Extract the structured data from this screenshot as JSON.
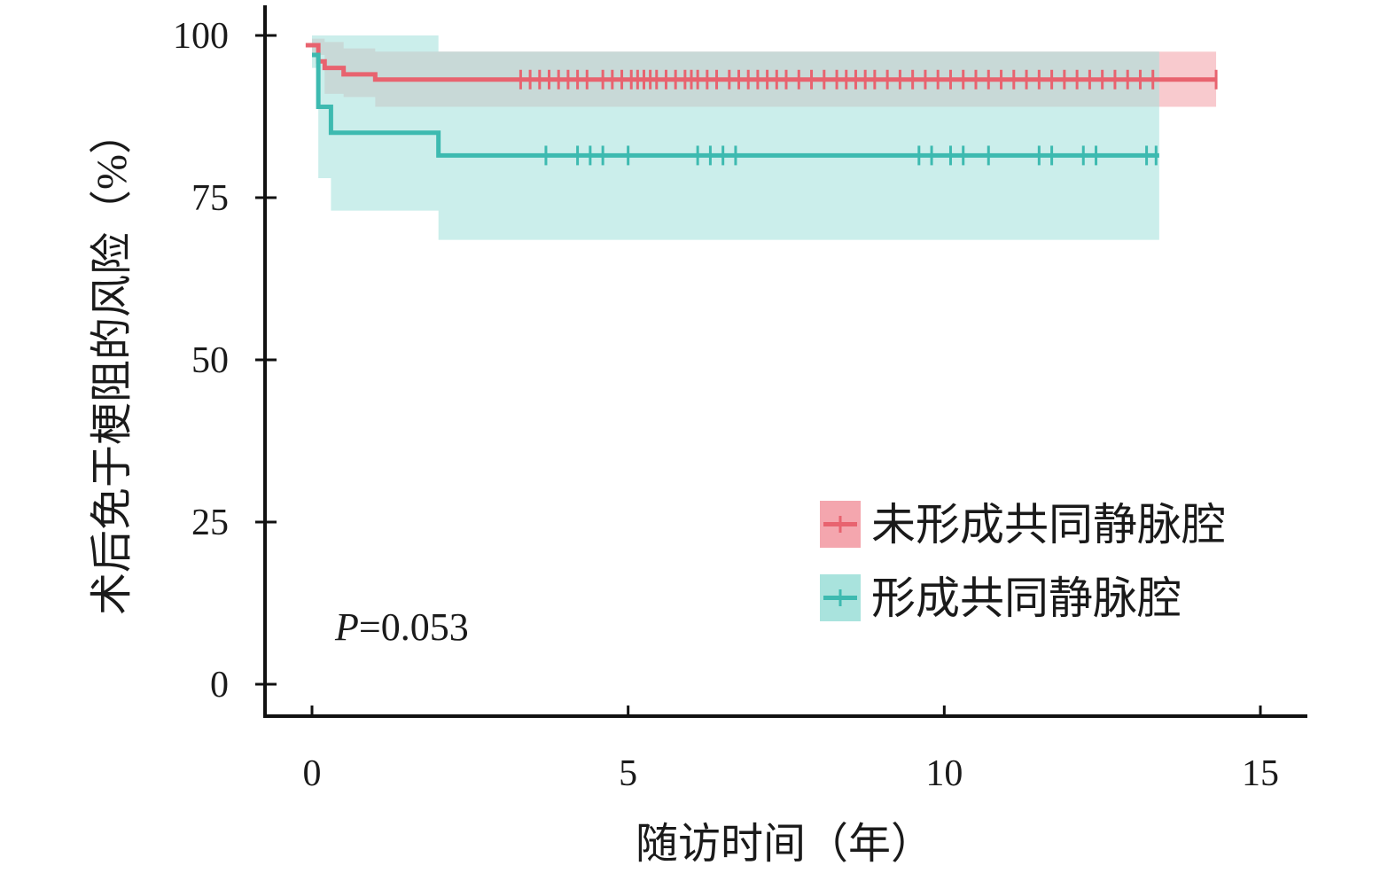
{
  "chart_data": {
    "type": "line",
    "xlabel": "随访时间（年）",
    "ylabel": "术后免于梗阻的风险（%）",
    "xlim": [
      0,
      15
    ],
    "ylim": [
      0,
      100
    ],
    "xticks": [
      "0",
      "5",
      "10",
      "15"
    ],
    "yticks": [
      "0",
      "25",
      "50",
      "75",
      "100"
    ],
    "grid": false,
    "legend_position": "bottom-right",
    "annotation": {
      "italic": "P",
      "rest": "=0.053"
    },
    "series": [
      {
        "name": "未形成共同静脉腔",
        "color": "#e8636f",
        "band_color": "#f4a6ae",
        "steps": [
          [
            -0.1,
            98.5
          ],
          [
            0.1,
            96
          ],
          [
            0.2,
            95
          ],
          [
            0.5,
            94
          ],
          [
            1.0,
            93.2
          ],
          [
            14.3,
            93.2
          ]
        ],
        "ci_steps": [
          [
            0.0,
            99.5,
            97
          ],
          [
            0.2,
            99,
            91
          ],
          [
            0.5,
            98,
            90.5
          ],
          [
            1.0,
            97.5,
            89
          ],
          [
            13.4,
            97.5,
            89
          ]
        ],
        "ci_end_band": [
          13.4,
          14.3,
          97.5,
          89
        ],
        "censored": [
          3.3,
          3.45,
          3.6,
          3.75,
          3.9,
          4.05,
          4.2,
          4.35,
          4.6,
          4.75,
          4.9,
          5.05,
          5.15,
          5.25,
          5.35,
          5.45,
          5.6,
          5.75,
          5.9,
          6.0,
          6.1,
          6.25,
          6.4,
          6.6,
          6.75,
          6.9,
          7.05,
          7.2,
          7.35,
          7.5,
          7.7,
          7.9,
          8.1,
          8.3,
          8.45,
          8.6,
          8.75,
          8.9,
          9.1,
          9.3,
          9.5,
          9.7,
          9.9,
          10.1,
          10.3,
          10.5,
          10.7,
          10.9,
          11.1,
          11.3,
          11.5,
          11.7,
          11.9,
          12.1,
          12.3,
          12.5,
          12.7,
          12.9,
          13.1,
          13.3,
          14.3
        ]
      },
      {
        "name": "形成共同静脉腔",
        "color": "#3dbab0",
        "band_color": "#a9e3dd",
        "steps": [
          [
            0.0,
            97
          ],
          [
            0.1,
            89
          ],
          [
            0.3,
            85
          ],
          [
            2.0,
            81.5
          ],
          [
            13.4,
            81.5
          ]
        ],
        "ci_steps": [
          [
            0.0,
            100,
            95
          ],
          [
            0.1,
            100,
            78
          ],
          [
            0.3,
            100,
            73
          ],
          [
            2.0,
            97.5,
            68.5
          ],
          [
            13.4,
            97.5,
            68.5
          ]
        ],
        "censored": [
          3.7,
          4.2,
          4.4,
          4.6,
          5.0,
          6.1,
          6.3,
          6.5,
          6.7,
          9.6,
          9.8,
          10.1,
          10.3,
          10.7,
          11.5,
          11.7,
          12.2,
          12.4,
          13.2,
          13.35
        ]
      }
    ]
  }
}
